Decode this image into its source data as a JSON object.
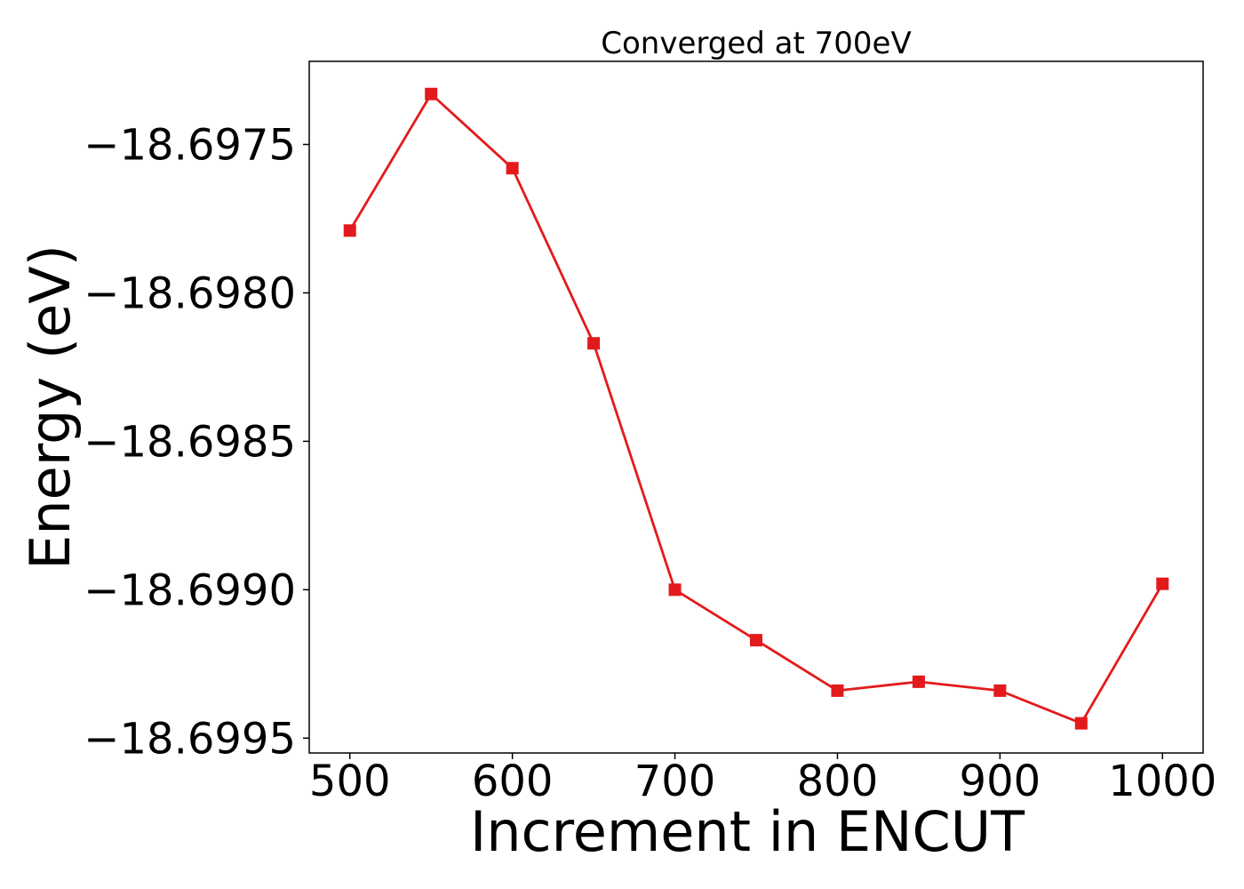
{
  "chart_data": {
    "type": "line",
    "title": "Converged at 700eV",
    "xlabel": "Increment in ENCUT",
    "ylabel": "Energy (eV)",
    "xlim": [
      475,
      1025
    ],
    "ylim": [
      -18.69955,
      -18.69722
    ],
    "x_ticks": [
      500,
      600,
      700,
      800,
      900,
      1000
    ],
    "x_tick_labels": [
      "500",
      "600",
      "700",
      "800",
      "900",
      "1000"
    ],
    "y_ticks": [
      -18.6975,
      -18.698,
      -18.6985,
      -18.699,
      -18.6995
    ],
    "y_tick_labels": [
      "−18.6975",
      "−18.6980",
      "−18.6985",
      "−18.6990",
      "−18.6995"
    ],
    "grid": false,
    "legend": "none",
    "series": [
      {
        "color": "#e31a1c",
        "marker": "square",
        "x": [
          500,
          550,
          600,
          650,
          700,
          750,
          800,
          850,
          900,
          950,
          1000
        ],
        "y": [
          -18.69779,
          -18.69733,
          -18.69758,
          -18.69817,
          -18.699,
          -18.69917,
          -18.69934,
          -18.69931,
          -18.69934,
          -18.69945,
          -18.69898
        ]
      }
    ]
  }
}
